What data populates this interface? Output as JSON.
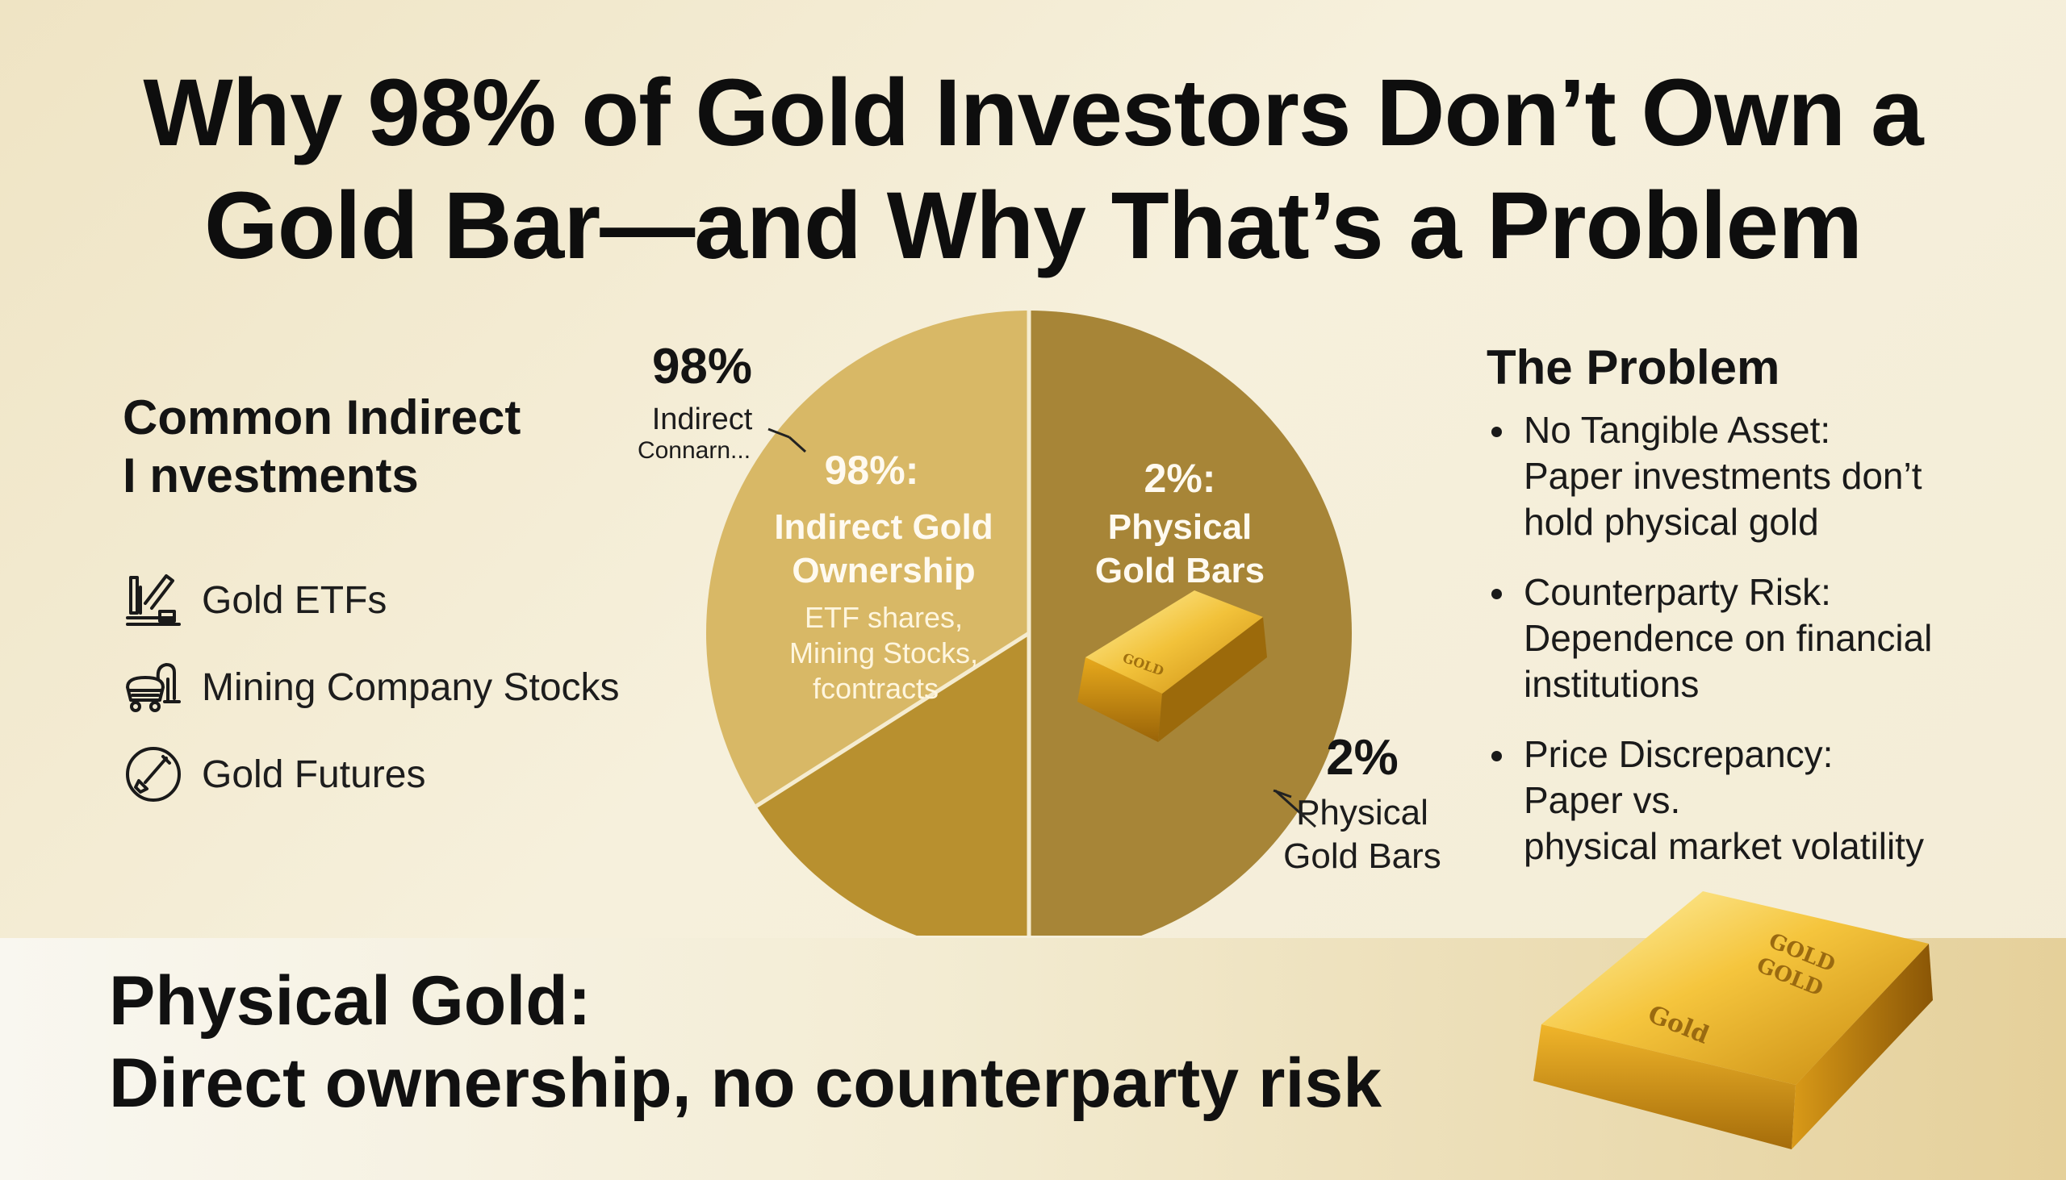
{
  "title": {
    "line1": "Why 98% of Gold Investors Don’t Own a",
    "line2": "Gold Bar—and Why That’s a Problem"
  },
  "left": {
    "heading_line1": "Common Indirect",
    "heading_line2": "I nvestments",
    "items": [
      {
        "label": "Gold ETFs",
        "icon": "chart-building-icon"
      },
      {
        "label": "Mining Company Stocks",
        "icon": "mining-cart-icon"
      },
      {
        "label": "Gold Futures",
        "icon": "circle-shovel-icon"
      }
    ]
  },
  "chart_data": {
    "type": "pie",
    "slices": [
      {
        "name": "Indirect Gold Ownership",
        "value": 98
      },
      {
        "name": "Physical Gold Bars",
        "value": 2
      }
    ],
    "inner_labels": {
      "indirect_pct": "98%:",
      "indirect_line1": "Indirect Gold",
      "indirect_line2": "Ownership",
      "indirect_sub1": "ETF shares,",
      "indirect_sub2": "Mining Stocks,",
      "indirect_sub3": "fcontracts",
      "physical_pct": "2%:",
      "physical_line1": "Physical",
      "physical_line2": "Gold Bars",
      "bar_stamp": "GOLD"
    },
    "callouts": {
      "indirect_pct": "98%",
      "indirect_line1": "Indirect",
      "indirect_line2": "Connarn...",
      "physical_pct": "2%",
      "physical_line1": "Physical",
      "physical_line2": "Gold Bars"
    },
    "colors": {
      "indirect_light": "#d8b866",
      "indirect_dark": "#b8902f",
      "physical": "#a78537"
    }
  },
  "right": {
    "heading": "The Problem",
    "items": [
      {
        "lines": [
          "No Tangible Asset:",
          "Paper investments don’t",
          "hold physical gold"
        ]
      },
      {
        "lines": [
          "Counterparty Risk:",
          "Dependence on financial",
          "institutions"
        ]
      },
      {
        "lines": [
          "Price Discrepancy:",
          "Paper vs.",
          "physical market volatility"
        ]
      }
    ]
  },
  "banner": {
    "line1": "Physical Gold:",
    "line2": "Direct ownership, no counterparty risk",
    "bar_stamp1": "GOLD",
    "bar_stamp2": "GOLD",
    "bar_stamp3": "Gold"
  }
}
